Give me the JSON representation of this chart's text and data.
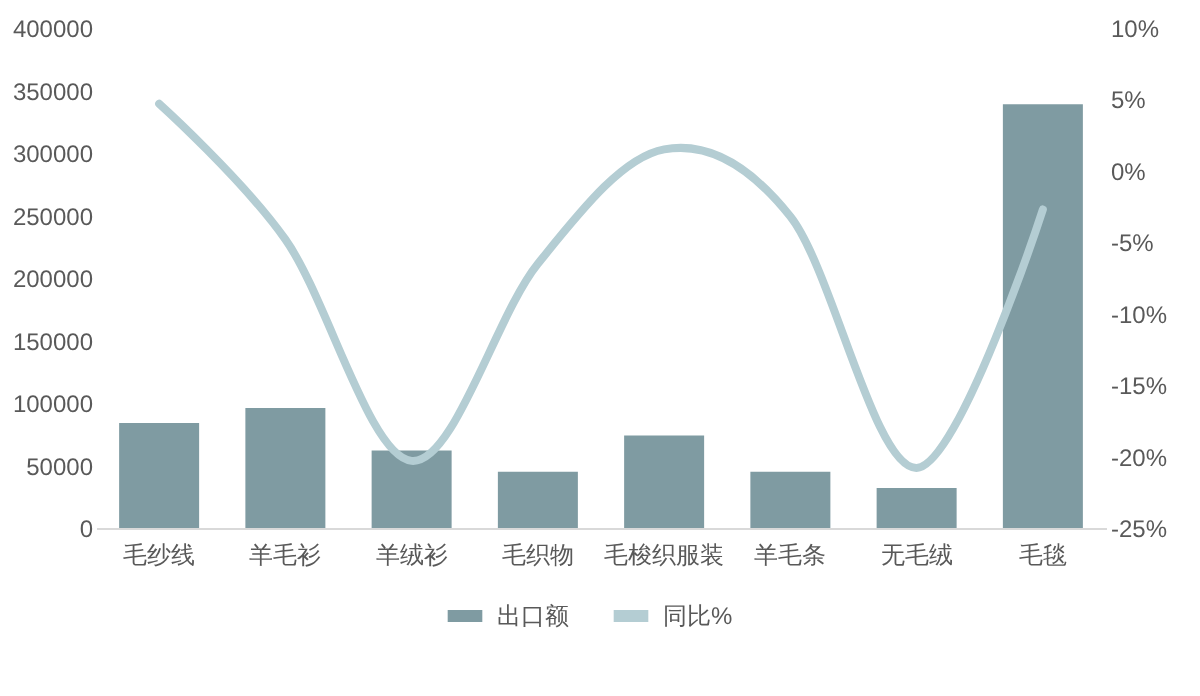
{
  "chart_data": {
    "type": "bar",
    "categories": [
      "毛纱线",
      "羊毛衫",
      "羊绒衫",
      "毛织物",
      "毛梭织服装",
      "羊毛条",
      "无毛绒",
      "毛毯"
    ],
    "series": [
      {
        "name": "出口额",
        "color": "#7f9ba2",
        "values": [
          84000,
          96000,
          62000,
          45000,
          74000,
          45000,
          32000,
          339000
        ]
      },
      {
        "name": "同比%",
        "type": "line",
        "axis": "y2",
        "color": "#b4cdd3",
        "values": [
          4.7,
          -4.8,
          -20.3,
          -6.5,
          1.5,
          -3.2,
          -20.8,
          -2.7
        ]
      }
    ],
    "ylim": [
      0,
      400000
    ],
    "yticks": [
      0,
      50000,
      100000,
      150000,
      200000,
      250000,
      300000,
      350000,
      400000
    ],
    "y2lim": [
      -25,
      10
    ],
    "y2ticks": [
      {
        "value": -25,
        "label": "-25%"
      },
      {
        "value": -20,
        "label": "-20%"
      },
      {
        "value": -15,
        "label": "-15%"
      },
      {
        "value": -10,
        "label": "-10%"
      },
      {
        "value": -5,
        "label": "-5%"
      },
      {
        "value": 0,
        "label": "0%"
      },
      {
        "value": 5,
        "label": "5%"
      },
      {
        "value": 10,
        "label": "10%"
      }
    ],
    "grid": false,
    "legend": "bottom",
    "marker": "none",
    "line_style": "solid"
  }
}
